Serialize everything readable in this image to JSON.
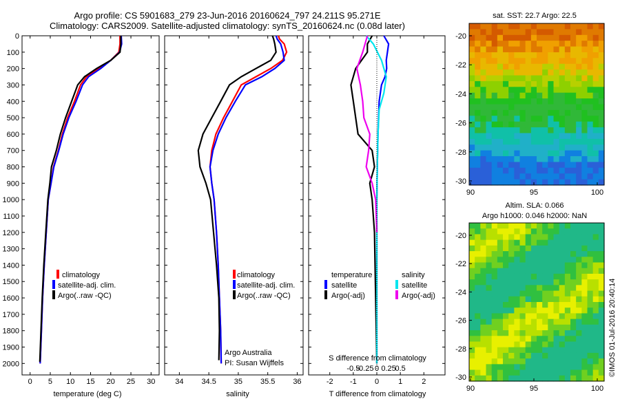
{
  "header": {
    "line1": "Argo profile: CS 5901683_279 23-Jun-2016 20160624_797 24.211S 95.271E",
    "line2": "Climatology: CARS2009. Satellite-adjusted climatology: synTS_20160624.nc (0.08d later)"
  },
  "panels": {
    "temperature": {
      "xlabel": "temperature (deg C)",
      "xticks": [
        0,
        5,
        10,
        15,
        20,
        25,
        30
      ],
      "legend": [
        "climatology",
        "satellite-adj. clim.",
        "Argo(..raw -QC)"
      ]
    },
    "salinity": {
      "xlabel": "salinity",
      "xticks": [
        "34",
        "34.5",
        "35",
        "35.5",
        "36"
      ],
      "legend": [
        "climatology",
        "satellite-adj. clim.",
        "Argo(..raw -QC)"
      ],
      "credit1": "Argo Australia",
      "credit2": "PI: Susan Wijffels"
    },
    "difference": {
      "xlabel": "T difference from climatology",
      "xlabel_top": "S difference from climatology",
      "xticks_T": [
        "-2",
        "-1",
        "0",
        "1",
        "2"
      ],
      "xticks_S": [
        "-0.5",
        "-0.25",
        "0",
        "0.25",
        "0.5"
      ],
      "legend_temp_title": "temperature",
      "legend_sal_title": "salinity",
      "legend_temp": [
        "satellite",
        "Argo(-adj)"
      ],
      "legend_sal": [
        "satellite",
        "Argo(-adj)"
      ]
    }
  },
  "depth_ticks": [
    "0",
    "100",
    "200",
    "300",
    "400",
    "500",
    "600",
    "700",
    "800",
    "900",
    "1000",
    "1100",
    "1200",
    "1300",
    "1400",
    "1500",
    "1600",
    "1700",
    "1800",
    "1900",
    "2000"
  ],
  "maps": {
    "sst": {
      "title": "sat. SST: 22.7 Argo: 22.5",
      "lat_ticks": [
        "-20",
        "-22",
        "-24",
        "-26",
        "-28",
        "-30"
      ],
      "lon_ticks": [
        "90",
        "95",
        "100"
      ]
    },
    "sla": {
      "title1": "Altim. SLA: 0.066",
      "title2": "Argo h1000: 0.046 h2000: NaN",
      "lat_ticks": [
        "-20",
        "-22",
        "-24",
        "-26",
        "-28",
        "-30"
      ],
      "lon_ticks": [
        "90",
        "95",
        "100"
      ]
    }
  },
  "footer": {
    "stamp": "©IMOS 01-Jul-2016 20:40:14"
  },
  "colors": {
    "climatology": "#ff0000",
    "satellite": "#0000ff",
    "argo": "#000000",
    "sat_sal": "#00e5ee",
    "argo_sal": "#ee00ee"
  },
  "chart_data": [
    {
      "type": "line",
      "title": "",
      "xlabel": "temperature (deg C)",
      "ylabel": "",
      "xlim": [
        -2,
        32
      ],
      "ylim": [
        2070,
        0
      ],
      "series": [
        {
          "name": "climatology",
          "color": "#ff0000",
          "x": [
            22.3,
            22.3,
            22.0,
            20.0,
            17.0,
            14.0,
            12.5,
            11.0,
            9.3,
            8.0,
            7.0,
            5.8,
            5.2,
            4.5,
            4.0,
            3.5,
            3.1,
            2.8,
            2.5
          ],
          "y": [
            0,
            50,
            100,
            150,
            200,
            250,
            300,
            400,
            500,
            600,
            700,
            800,
            900,
            1000,
            1200,
            1400,
            1600,
            1800,
            2000
          ]
        },
        {
          "name": "satellite-adj. clim.",
          "color": "#0000ff",
          "x": [
            22.6,
            22.7,
            22.2,
            20.0,
            17.5,
            14.5,
            13.0,
            11.4,
            9.6,
            8.2,
            7.1,
            5.9,
            5.2,
            4.5,
            4.0,
            3.5,
            3.1,
            2.8,
            2.5
          ],
          "y": [
            0,
            50,
            100,
            150,
            200,
            250,
            300,
            400,
            500,
            600,
            700,
            800,
            900,
            1000,
            1200,
            1400,
            1600,
            1800,
            2000
          ]
        },
        {
          "name": "Argo(..raw -QC)",
          "color": "#000000",
          "x": [
            22.5,
            22.5,
            22.3,
            20.0,
            16.5,
            13.5,
            11.8,
            10.3,
            8.8,
            7.5,
            6.5,
            5.3,
            4.9,
            4.4,
            3.9,
            3.4,
            3.0,
            2.7,
            2.4
          ],
          "y": [
            0,
            50,
            100,
            150,
            200,
            250,
            300,
            400,
            500,
            600,
            700,
            800,
            900,
            1000,
            1200,
            1400,
            1600,
            1800,
            1990
          ]
        }
      ]
    },
    {
      "type": "line",
      "title": "",
      "xlabel": "salinity",
      "ylabel": "",
      "xlim": [
        33.75,
        36.1
      ],
      "ylim": [
        2070,
        0
      ],
      "series": [
        {
          "name": "climatology",
          "color": "#ff0000",
          "x": [
            35.68,
            35.7,
            35.78,
            35.82,
            35.75,
            35.55,
            35.3,
            35.05,
            34.9,
            34.75,
            34.62,
            34.55,
            34.52,
            34.55,
            34.59,
            34.63,
            34.66,
            34.68,
            34.7,
            34.71
          ],
          "y": [
            0,
            20,
            50,
            100,
            150,
            200,
            250,
            300,
            400,
            500,
            600,
            700,
            800,
            900,
            1000,
            1200,
            1400,
            1600,
            1800,
            2000
          ]
        },
        {
          "name": "satellite-adj. clim.",
          "color": "#0000ff",
          "x": [
            35.64,
            35.66,
            35.72,
            35.76,
            35.78,
            35.62,
            35.4,
            35.12,
            34.95,
            34.79,
            34.66,
            34.57,
            34.52,
            34.55,
            34.59,
            34.63,
            34.66,
            34.68,
            34.7,
            34.71
          ],
          "y": [
            0,
            20,
            50,
            100,
            150,
            200,
            250,
            300,
            400,
            500,
            600,
            700,
            800,
            900,
            1000,
            1200,
            1400,
            1600,
            1800,
            2000
          ]
        },
        {
          "name": "Argo(..raw -QC)",
          "color": "#000000",
          "x": [
            35.58,
            35.6,
            35.62,
            35.64,
            35.55,
            35.3,
            35.05,
            34.85,
            34.7,
            34.55,
            34.4,
            34.32,
            34.35,
            34.45,
            34.53,
            34.58,
            34.63,
            34.67,
            34.68,
            34.67
          ],
          "y": [
            0,
            20,
            50,
            100,
            150,
            200,
            250,
            300,
            400,
            500,
            600,
            700,
            800,
            900,
            1000,
            1200,
            1400,
            1600,
            1800,
            1980
          ]
        }
      ]
    },
    {
      "type": "line",
      "title": "",
      "xlabel": "T difference from climatology",
      "ylabel": "",
      "xlim": [
        -2.9,
        2.9
      ],
      "ylim": [
        2070,
        0
      ],
      "series": [
        {
          "name": "temperature satellite",
          "color": "#0000ff",
          "x": [
            0.3,
            0.5,
            0.45,
            0.4,
            0.42,
            0.35,
            0.2,
            0.1,
            0.05,
            0.02,
            0.0,
            0.0,
            0.0,
            0.0
          ],
          "y": [
            0,
            50,
            100,
            150,
            200,
            250,
            300,
            400,
            600,
            800,
            1000,
            1200,
            1600,
            2000
          ]
        },
        {
          "name": "temperature Argo(-adj)",
          "color": "#000000",
          "x": [
            -0.2,
            -0.4,
            -0.4,
            -0.9,
            -1.1,
            -1.0,
            -0.9,
            -0.8,
            -0.2,
            -0.1,
            -0.3,
            -0.2,
            -0.1,
            -0.05,
            0.0
          ],
          "y": [
            0,
            50,
            100,
            200,
            300,
            400,
            500,
            600,
            700,
            800,
            900,
            1000,
            1200,
            1600,
            2000
          ]
        },
        {
          "name": "salinity satellite",
          "color": "#00e5ee",
          "x": [
            -0.45,
            -0.15,
            0.2,
            0.4,
            0.3,
            0.1,
            0.05,
            0.02,
            0.0,
            0.0,
            0.0
          ],
          "y": [
            0,
            50,
            150,
            250,
            350,
            450,
            600,
            800,
            1000,
            1500,
            2000
          ]
        },
        {
          "name": "salinity Argo(-adj)",
          "color": "#ee00ee",
          "x": [
            -0.4,
            -0.6,
            -0.85,
            -0.7,
            -0.6,
            -0.55,
            -0.3,
            -0.35,
            -0.45,
            -0.2,
            -0.05,
            0.0
          ],
          "y": [
            0,
            100,
            200,
            300,
            400,
            500,
            600,
            700,
            800,
            900,
            1000,
            1200
          ]
        }
      ]
    }
  ]
}
